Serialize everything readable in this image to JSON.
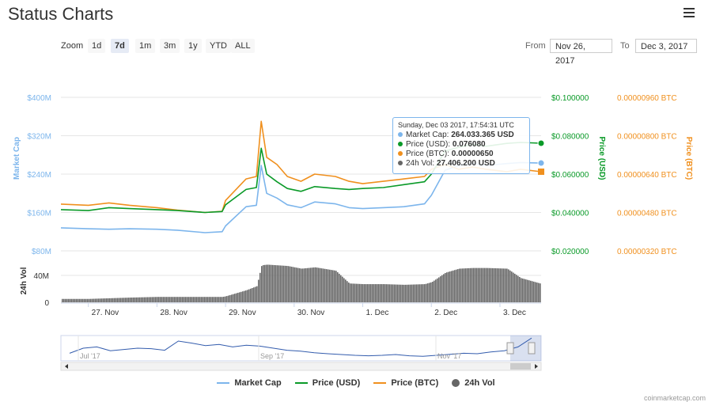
{
  "header": {
    "title": "Status Charts",
    "menu_icon": "hamburger-icon"
  },
  "zoom": {
    "label": "Zoom",
    "buttons": [
      "1d",
      "7d",
      "1m",
      "3m",
      "1y",
      "YTD",
      "ALL"
    ],
    "active": "7d"
  },
  "range": {
    "from_label": "From",
    "from": "Nov 26, 2017",
    "to_label": "To",
    "to": "Dec 3, 2017"
  },
  "tooltip": {
    "header": "Sunday, Dec 03 2017, 17:54:31 UTC",
    "rows": [
      {
        "label": "Market Cap:",
        "value": "264.033.365 USD"
      },
      {
        "label": "Price (USD):",
        "value": "0.076080"
      },
      {
        "label": "Price (BTC):",
        "value": "0.00000650"
      },
      {
        "label": "24h Vol:",
        "value": "27.406.200 USD"
      }
    ]
  },
  "colors": {
    "market_cap": "#7cb5ec",
    "price_usd": "#0a9a28",
    "price_btc": "#f0901e",
    "volume": "#666666"
  },
  "chart_data": {
    "type": "line",
    "x_ticks": [
      "27. Nov",
      "28. Nov",
      "29. Nov",
      "30. Nov",
      "1. Dec",
      "2. Dec",
      "3. Dec"
    ],
    "axes": {
      "market_cap": {
        "title": "Market Cap",
        "ticks": [
          "$80M",
          "$160M",
          "$240M",
          "$320M",
          "$400M"
        ],
        "values": [
          80,
          160,
          240,
          320,
          400
        ],
        "unit": "M USD"
      },
      "price_usd": {
        "title": "Price (USD)",
        "ticks": [
          "$0.020000",
          "$0.040000",
          "$0.060000",
          "$0.080000",
          "$0.100000"
        ],
        "values": [
          0.02,
          0.04,
          0.06,
          0.08,
          0.1
        ]
      },
      "price_btc": {
        "title": "Price (BTC)",
        "ticks": [
          "0.00000320 BTC",
          "0.00000480 BTC",
          "0.00000640 BTC",
          "0.00000800 BTC",
          "0.00000960 BTC"
        ],
        "values": [
          3.2e-06,
          4.8e-06,
          6.4e-06,
          8e-06,
          9.6e-06
        ]
      },
      "volume": {
        "title": "24h Vol",
        "ticks": [
          "0",
          "40M"
        ],
        "values": [
          0,
          40
        ],
        "unit": "M USD"
      }
    },
    "x": [
      26.6,
      27.0,
      27.3,
      27.6,
      28.0,
      28.3,
      28.7,
      28.95,
      29.0,
      29.3,
      29.45,
      29.52,
      29.6,
      29.75,
      29.9,
      30.1,
      30.3,
      30.6,
      30.8,
      31.0,
      31.3,
      31.6,
      31.9,
      32.0,
      32.2,
      32.4,
      32.6,
      32.8,
      33.1,
      33.3,
      33.6
    ],
    "series": [
      {
        "name": "Market Cap",
        "axis": "market_cap",
        "values": [
          128,
          126,
          125,
          126,
          125,
          123,
          118,
          120,
          132,
          172,
          175,
          258,
          200,
          190,
          176,
          170,
          182,
          178,
          170,
          168,
          170,
          172,
          178,
          196,
          248,
          258,
          262,
          258,
          262,
          264,
          263
        ]
      },
      {
        "name": "Price (USD)",
        "axis": "price_usd",
        "values": [
          0.0415,
          0.041,
          0.0425,
          0.042,
          0.0415,
          0.041,
          0.04,
          0.0405,
          0.044,
          0.052,
          0.053,
          0.0735,
          0.06,
          0.056,
          0.0525,
          0.051,
          0.0535,
          0.0525,
          0.052,
          0.0525,
          0.053,
          0.0545,
          0.056,
          0.06,
          0.072,
          0.074,
          0.0755,
          0.0745,
          0.076,
          0.0765,
          0.07608
        ]
      },
      {
        "name": "Price (BTC)",
        "axis": "price_btc",
        "values": [
          5.15e-06,
          5.1e-06,
          5.2e-06,
          5.1e-06,
          5e-06,
          4.9e-06,
          4.8e-06,
          4.85e-06,
          5.3e-06,
          6.2e-06,
          6.3e-06,
          8.6e-06,
          7.1e-06,
          6.8e-06,
          6.3e-06,
          6.1e-06,
          6.4e-06,
          6.3e-06,
          6.1e-06,
          6e-06,
          6.1e-06,
          6.2e-06,
          6.3e-06,
          6.6e-06,
          6.8e-06,
          6.6e-06,
          6.7e-06,
          6.6e-06,
          6.5e-06,
          6.6e-06,
          6.5e-06
        ]
      },
      {
        "name": "24h Vol",
        "axis": "volume",
        "type": "column",
        "values": [
          5,
          5,
          6,
          7,
          8,
          8,
          8,
          8,
          9,
          18,
          24,
          55,
          56,
          55,
          54,
          50,
          52,
          47,
          28,
          27,
          27,
          26,
          27,
          30,
          44,
          50,
          51,
          51,
          50,
          36,
          27.4
        ]
      }
    ],
    "navigator": {
      "labels": [
        "Jul '17",
        "Sep '17",
        "Nov '17"
      ]
    },
    "legend": [
      "Market Cap",
      "Price (USD)",
      "Price (BTC)",
      "24h Vol"
    ],
    "credit": "coinmarketcap.com"
  }
}
